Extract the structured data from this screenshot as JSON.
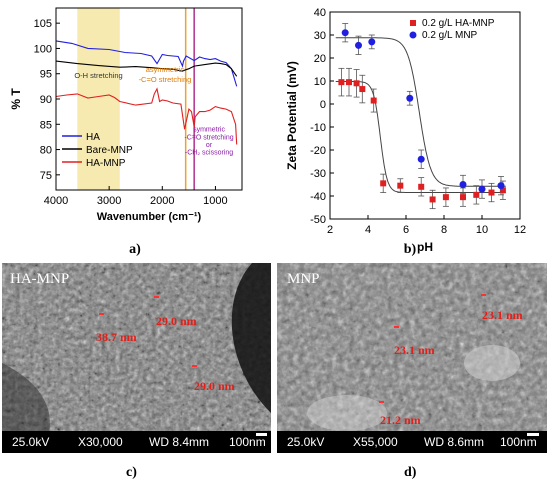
{
  "chart_data": [
    {
      "type": "line",
      "panel": "a)",
      "xlabel": "Wavenumber (cm⁻¹)",
      "ylabel": "% T",
      "xlim": [
        4000,
        500
      ],
      "ylim": [
        72,
        108
      ],
      "xticks": [
        "4000",
        "3000",
        "2000",
        "1000"
      ],
      "yticks": [
        "75",
        "80",
        "85",
        "90",
        "95",
        "100",
        "105"
      ],
      "legend_position": "bottom-left",
      "series": [
        {
          "name": "HA",
          "color": "#2020e0",
          "x": [
            4000,
            3700,
            3400,
            3000,
            2900,
            2700,
            2400,
            2200,
            2100,
            2000,
            1900,
            1700,
            1620,
            1600,
            1550,
            1400,
            1300,
            1200,
            1100,
            1000,
            900,
            800,
            700,
            600
          ],
          "y": [
            101.5,
            101,
            100,
            99.8,
            99.6,
            99.2,
            99,
            98.5,
            97,
            98.8,
            98.6,
            98.4,
            96.5,
            97.5,
            98.5,
            97.6,
            98.3,
            98,
            97.8,
            98,
            97.5,
            97.2,
            96,
            92.5
          ]
        },
        {
          "name": "Bare-MNP",
          "color": "#000000",
          "x": [
            4000,
            3600,
            3200,
            2800,
            2500,
            2200,
            2000,
            1800,
            1630,
            1500,
            1400,
            1200,
            1000,
            900,
            800,
            700,
            600
          ],
          "y": [
            97.5,
            97,
            96.6,
            96.3,
            96.4,
            96.2,
            96,
            95.9,
            95.5,
            96,
            96.5,
            96.8,
            97.1,
            97,
            96.8,
            96,
            94.5
          ]
        },
        {
          "name": "HA-MNP",
          "color": "#e02020",
          "x": [
            4000,
            3800,
            3600,
            3400,
            3200,
            3000,
            2900,
            2800,
            2500,
            2200,
            2150,
            2100,
            2050,
            2000,
            1900,
            1800,
            1650,
            1580,
            1500,
            1450,
            1400,
            1380,
            1300,
            1200,
            1100,
            1000,
            900,
            800,
            700,
            620,
            600
          ],
          "y": [
            90.5,
            90.8,
            91,
            90.2,
            90.5,
            90.8,
            90.3,
            89.5,
            88.8,
            89.2,
            91,
            92,
            89.5,
            89.8,
            89.6,
            89.2,
            89,
            84,
            88,
            87.5,
            84.5,
            86.5,
            87.5,
            87.5,
            87.8,
            88.5,
            88.2,
            88,
            87.5,
            85,
            81
          ]
        }
      ],
      "annotations": [
        {
          "text": "O-H stretching",
          "color": "#333333"
        },
        {
          "text": "asymmetric",
          "color": "#e07b00"
        },
        {
          "text": "-C=O stretching",
          "color": "#e07b00"
        },
        {
          "text": "symmetric",
          "color": "#8a1aa8"
        },
        {
          "text": "-C=O stretching",
          "color": "#8a1aa8"
        },
        {
          "text": "or",
          "color": "#8a1aa8"
        },
        {
          "text": "-CH₂ scissoring",
          "color": "#8a1aa8"
        }
      ],
      "bands": [
        {
          "from": 3600,
          "to": 2800,
          "color": "#f7eab0"
        },
        {
          "at": 1560,
          "color": "#f0a030"
        },
        {
          "at": 1400,
          "color": "#b03090"
        }
      ]
    },
    {
      "type": "scatter",
      "panel": "b)",
      "xlabel": "pH",
      "ylabel": "Zeta Potential (mV)",
      "xlim": [
        2,
        12
      ],
      "ylim": [
        -50,
        40
      ],
      "xticks": [
        "2",
        "4",
        "6",
        "8",
        "10",
        "12"
      ],
      "yticks": [
        "40",
        "30",
        "20",
        "10",
        "0",
        "-10",
        "-20",
        "-30",
        "-40",
        "-50"
      ],
      "legend_position": "top-right",
      "series": [
        {
          "name": "0.2 g/L HA-MNP",
          "color": "#e02020",
          "marker": "square",
          "x": [
            2.6,
            3.0,
            3.4,
            3.7,
            4.3,
            4.8,
            5.7,
            6.8,
            7.4,
            8.1,
            9.0,
            9.7,
            10.5,
            11.1
          ],
          "y": [
            9.5,
            9.5,
            9,
            6.5,
            1.5,
            -34.5,
            -35.5,
            -36,
            -41.5,
            -40.5,
            -40.5,
            -39.5,
            -38.5,
            -37.5
          ],
          "err": [
            6,
            6,
            6,
            6,
            5,
            4,
            3,
            4,
            4,
            4,
            4,
            4,
            4,
            4
          ]
        },
        {
          "name": "0.2 g/L MNP",
          "color": "#2020e0",
          "marker": "circle",
          "x": [
            2.8,
            3.5,
            4.2,
            6.2,
            6.8,
            9.0,
            10.0,
            11.0
          ],
          "y": [
            31,
            25.5,
            27,
            2.5,
            -24,
            -35,
            -37,
            -35.5
          ],
          "err": [
            4,
            4,
            3,
            3,
            4,
            4,
            4,
            4
          ]
        }
      ],
      "fits": [
        {
          "series": "0.2 g/L HA-MNP",
          "color": "#444444",
          "upper": 9.8,
          "lower": -38.5,
          "mid": 4.65,
          "width": 0.18
        },
        {
          "series": "0.2 g/L MNP",
          "color": "#444444",
          "upper": 28.8,
          "lower": -35.8,
          "mid": 6.7,
          "width": 0.3
        }
      ]
    }
  ],
  "captions": {
    "a": "a)",
    "b": "b)",
    "c": "c)",
    "d": "d)"
  },
  "sem_left": {
    "label": "HA-MNP",
    "kv": "25.0kV",
    "mag": "X30,000",
    "wd": "WD 8.4mm",
    "scale": "100nm",
    "measurements": [
      "29.0 nm",
      "38.7 nm",
      "29.0 nm"
    ]
  },
  "sem_right": {
    "label": "MNP",
    "kv": "25.0kV",
    "mag": "X55,000",
    "wd": "WD 8.6mm",
    "scale": "100nm",
    "measurements": [
      "23.1 nm",
      "23.1 nm",
      "21.2 nm"
    ]
  }
}
